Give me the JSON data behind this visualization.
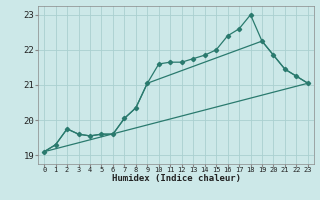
{
  "xlabel": "Humidex (Indice chaleur)",
  "background_color": "#cce8e8",
  "line_color": "#2a7a6e",
  "grid_color": "#aad0d0",
  "xlim": [
    -0.5,
    23.5
  ],
  "ylim": [
    18.75,
    23.25
  ],
  "yticks": [
    19,
    20,
    21,
    22,
    23
  ],
  "xticks": [
    0,
    1,
    2,
    3,
    4,
    5,
    6,
    7,
    8,
    9,
    10,
    11,
    12,
    13,
    14,
    15,
    16,
    17,
    18,
    19,
    20,
    21,
    22,
    23
  ],
  "series1_x": [
    0,
    1,
    2,
    3,
    4,
    5,
    6,
    7,
    8,
    9,
    10,
    11,
    12,
    13,
    14,
    15,
    16,
    17,
    18,
    19,
    20,
    21,
    22,
    23
  ],
  "series1_y": [
    19.1,
    19.3,
    19.75,
    19.6,
    19.55,
    19.6,
    19.6,
    20.05,
    20.35,
    21.05,
    21.6,
    21.65,
    21.65,
    21.75,
    21.85,
    22.0,
    22.4,
    22.6,
    23.0,
    22.25,
    21.85,
    21.45,
    21.25,
    21.05
  ],
  "series2_x": [
    0,
    23
  ],
  "series2_y": [
    19.1,
    21.05
  ],
  "series3_x": [
    0,
    1,
    2,
    3,
    4,
    5,
    6,
    7,
    8,
    9,
    19,
    20,
    21,
    22,
    23
  ],
  "series3_y": [
    19.1,
    19.3,
    19.75,
    19.6,
    19.55,
    19.6,
    19.6,
    20.05,
    20.35,
    21.05,
    22.25,
    21.85,
    21.45,
    21.25,
    21.05
  ]
}
